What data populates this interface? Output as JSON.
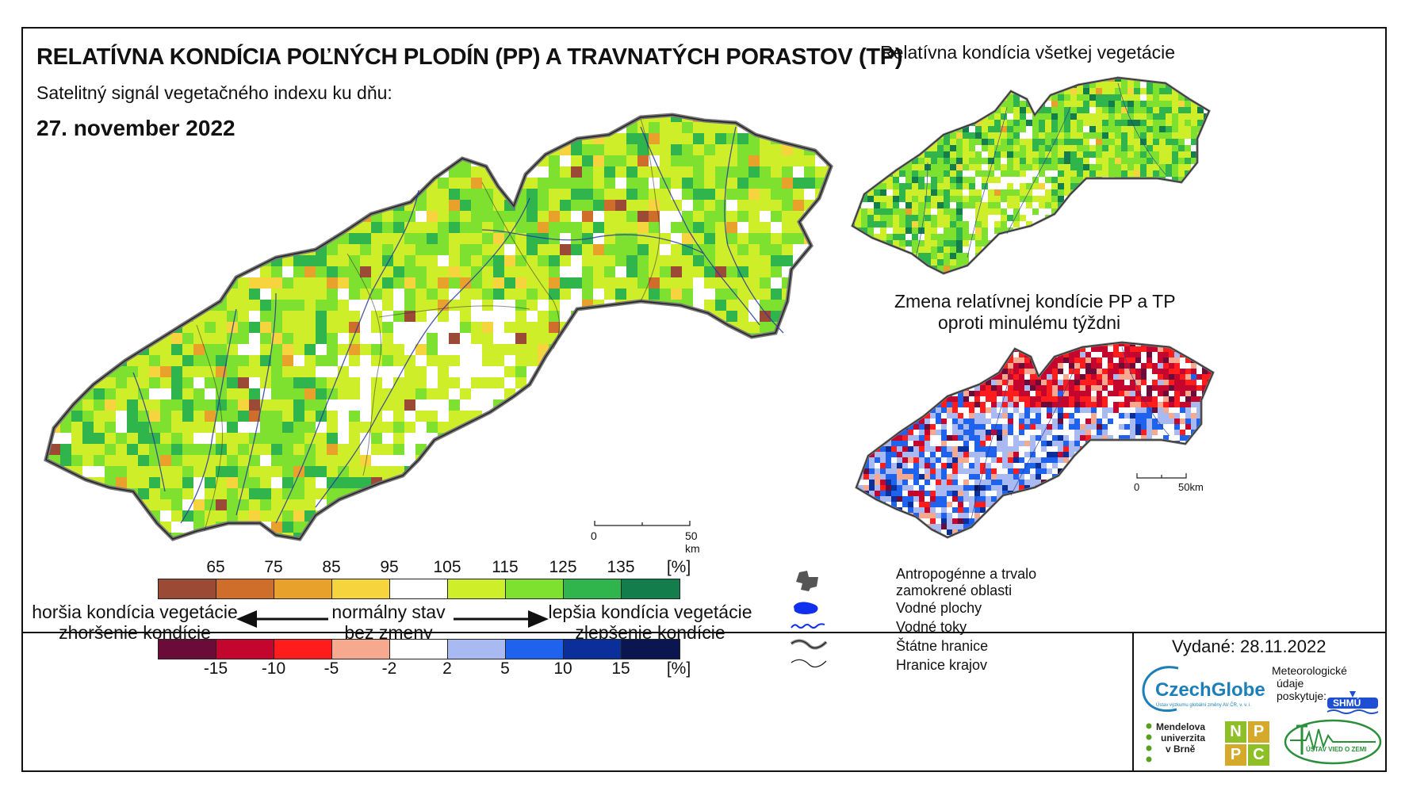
{
  "header": {
    "title": "RELATÍVNA KONDÍCIA POĽNÝCH PLODÍN (PP) A TRAVNATÝCH PORASTOV (TP)",
    "subtitle": "Satelitný signál vegetačného indexu ku dňu:",
    "date": "27. november 2022"
  },
  "insets": {
    "all_vegetation_title": "Relatívna kondícia všetkej vegetácie",
    "change_title_line1": "Zmena relatívnej kondície PP a TP",
    "change_title_line2": "oproti minulému týždni"
  },
  "scale_main": {
    "zero": "0",
    "end": "50 km"
  },
  "scale_inset": {
    "zero": "0",
    "end": "50km"
  },
  "legend": {
    "condition_ticks": [
      "65",
      "75",
      "85",
      "95",
      "105",
      "115",
      "125",
      "135",
      "[%]"
    ],
    "condition_colors": [
      "#9b4a35",
      "#cf6e2a",
      "#e8a12b",
      "#f5d43d",
      "#ffffff",
      "#cfee2a",
      "#7fe12f",
      "#2fb54c",
      "#147d4c"
    ],
    "change_ticks": [
      "-15",
      "-10",
      "-5",
      "-2",
      "2",
      "5",
      "10",
      "15",
      "[%]"
    ],
    "change_colors": [
      "#6b0b3a",
      "#c4062e",
      "#ff1c1c",
      "#f7a98f",
      "#ffffff",
      "#a9b9f2",
      "#1f62ee",
      "#0a2e9a",
      "#0b1550"
    ],
    "worse_line1": "horšia kondícia vegetácie",
    "worse_line2": "zhoršenie kondície",
    "normal_line1": "normálny stav",
    "normal_line2": "bez zmeny",
    "better_line1": "lepšia kondícia vegetácie",
    "better_line2": "zlepšenie kondície"
  },
  "symbols": {
    "anthropogenic_line1": "Antropogénne a trvalo",
    "anthropogenic_line2": "zamokrené oblasti",
    "water_bodies": "Vodné plochy",
    "streams": "Vodné toky",
    "state_border": "Štátne hranice",
    "region_border": "Hranice krajov"
  },
  "footer": {
    "issued": "Vydané: 28.11.2022",
    "czechglobe": "CzechGlobe",
    "czechglobe_sub": "Ústav výzkumu globální změny AV ČR, v. v. i.",
    "meteo_line1": "Meteorologické",
    "meteo_line2": "údaje",
    "meteo_line3": "poskytuje:",
    "shmu": "SHMÚ",
    "mendel_line1": "Mendelova",
    "mendel_line2": "univerzita",
    "mendel_line3": "v Brně",
    "nppc": [
      "N",
      "P",
      "P",
      "C"
    ],
    "uvz": "ÚSTAV VIED O ZEMI"
  }
}
